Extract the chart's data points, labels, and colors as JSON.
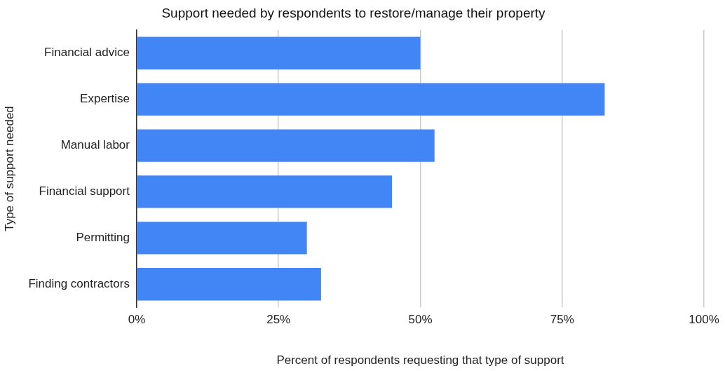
{
  "chart_data": {
    "type": "bar",
    "orientation": "horizontal",
    "title": "Support needed by respondents to restore/manage their property",
    "xlabel": "Percent of respondents requesting that type of support",
    "ylabel": "Type of support needed",
    "categories": [
      "Financial advice",
      "Expertise",
      "Manual labor",
      "Financial support",
      "Permitting",
      "Finding contractors"
    ],
    "values": [
      50,
      82.5,
      52.5,
      45,
      30,
      32.5
    ],
    "color": "#4285f4",
    "xlim": [
      0,
      100
    ],
    "xticks": [
      {
        "value": 0,
        "label": "0%"
      },
      {
        "value": 25,
        "label": "25%"
      },
      {
        "value": 50,
        "label": "50%"
      },
      {
        "value": 75,
        "label": "75%"
      },
      {
        "value": 100,
        "label": "100%"
      }
    ],
    "grid": "x",
    "legend": false
  }
}
